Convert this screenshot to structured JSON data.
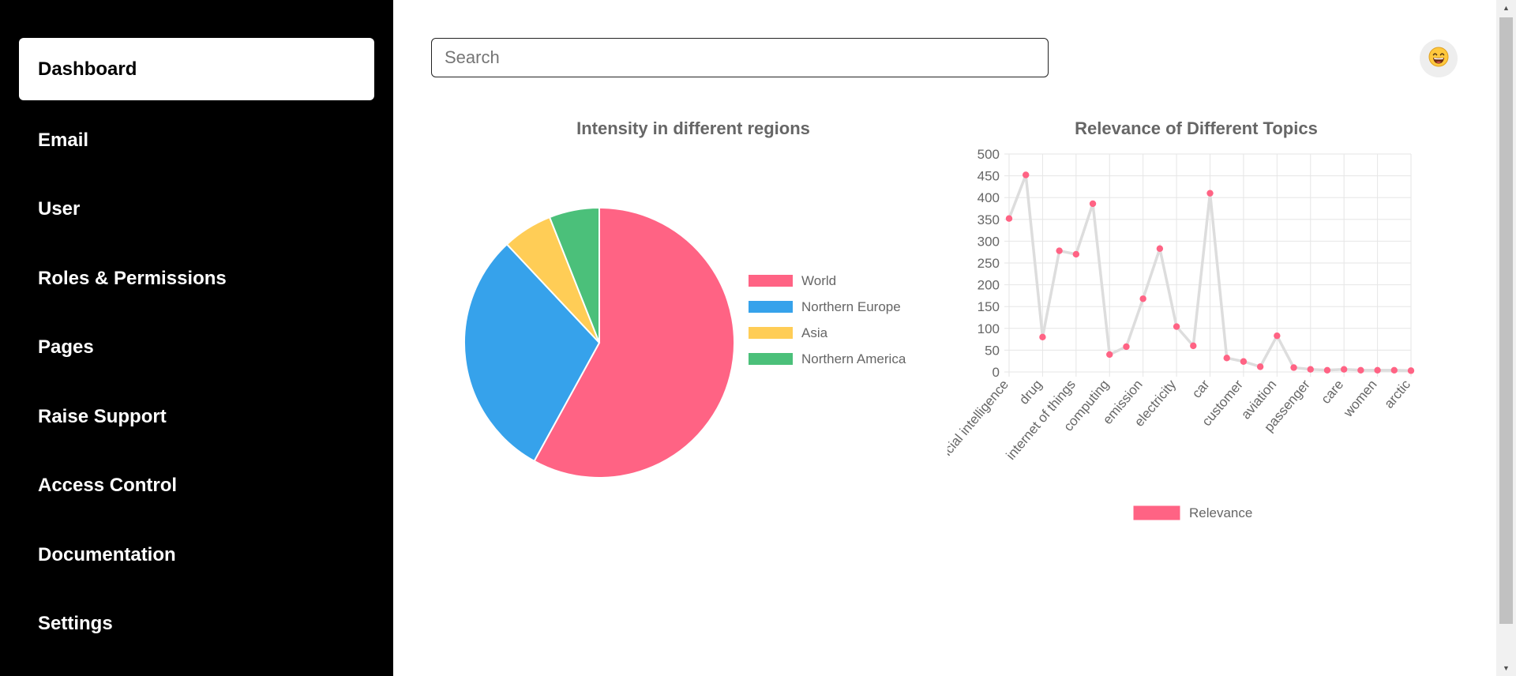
{
  "sidebar": {
    "items": [
      {
        "label": "Dashboard",
        "active": true
      },
      {
        "label": "Email"
      },
      {
        "label": "User"
      },
      {
        "label": "Roles & Permissions"
      },
      {
        "label": "Pages"
      },
      {
        "label": "Raise Support"
      },
      {
        "label": "Access Control"
      },
      {
        "label": "Documentation"
      },
      {
        "label": "Settings"
      }
    ]
  },
  "search": {
    "placeholder": "Search",
    "value": ""
  },
  "avatar": {
    "emoji": "😄",
    "icon": "smiley-face-icon"
  },
  "colors": {
    "sidebar_bg": "#000000",
    "pink": "#ff6384",
    "blue": "#36a2eb",
    "yellow": "#ffcd56",
    "green": "#4bc07a",
    "line": "#dddddd"
  },
  "chart_data": [
    {
      "type": "pie",
      "title": "Intensity in different regions",
      "legend_position": "right",
      "labels": [
        "World",
        "Northern Europe",
        "Asia",
        "Northern America"
      ],
      "values": [
        58,
        30,
        6,
        6
      ],
      "colors": [
        "#ff6384",
        "#36a2eb",
        "#ffcd56",
        "#4bc07a"
      ]
    },
    {
      "type": "line",
      "title": "Relevance of Different Topics",
      "legend_position": "bottom",
      "grid": true,
      "ylim": [
        0,
        500
      ],
      "yticks": [
        0,
        50,
        100,
        150,
        200,
        250,
        300,
        350,
        400,
        450,
        500
      ],
      "categories": [
        "artificial intelligence",
        "",
        "drug",
        "",
        "internet of things",
        "",
        "computing",
        "",
        "emission",
        "",
        "electricity",
        "",
        "car",
        "",
        "customer",
        "",
        "aviation",
        "",
        "passenger",
        "",
        "care",
        "",
        "women",
        "",
        "arctic"
      ],
      "series": [
        {
          "name": "Relevance",
          "color": "#ff6384",
          "line_color": "#dddddd",
          "values": [
            352,
            452,
            80,
            278,
            270,
            386,
            40,
            58,
            168,
            283,
            104,
            60,
            410,
            32,
            24,
            12,
            83,
            10,
            6,
            4,
            6,
            4,
            4,
            4,
            3
          ]
        }
      ]
    }
  ]
}
